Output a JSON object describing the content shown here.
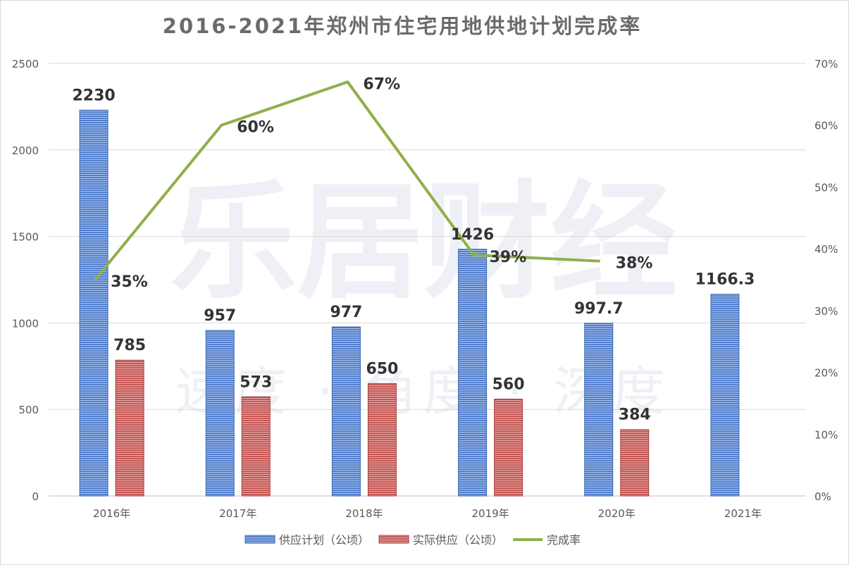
{
  "chart_data": {
    "type": "bar",
    "title": "2016-2021年郑州市住宅用地供地计划完成率",
    "categories": [
      "2016年",
      "2017年",
      "2018年",
      "2019年",
      "2020年",
      "2021年"
    ],
    "series": [
      {
        "name": "供应计划（公顷）",
        "kind": "bar",
        "axis": "left",
        "color": "#5b86d6",
        "values": [
          2230,
          957,
          977,
          1426,
          997.7,
          1166.3
        ],
        "labels": [
          "2230",
          "957",
          "977",
          "1426",
          "997.7",
          "1166.3"
        ]
      },
      {
        "name": "实际供应（公顷）",
        "kind": "bar",
        "axis": "left",
        "color": "#c9504f",
        "values": [
          785,
          573,
          650,
          560,
          384,
          null
        ],
        "labels": [
          "785",
          "573",
          "650",
          "560",
          "384",
          ""
        ]
      },
      {
        "name": "完成率",
        "kind": "line",
        "axis": "right",
        "color": "#8fb04a",
        "values": [
          35,
          60,
          67,
          39,
          38,
          null
        ],
        "labels": [
          "35%",
          "60%",
          "67%",
          "39%",
          "38%",
          ""
        ]
      }
    ],
    "y_left": {
      "min": 0,
      "max": 2500,
      "ticks": [
        "0",
        "500",
        "1000",
        "1500",
        "2000",
        "2500"
      ]
    },
    "y_right": {
      "min": 0,
      "max": 70,
      "ticks": [
        "0%",
        "10%",
        "20%",
        "30%",
        "40%",
        "50%",
        "60%",
        "70%"
      ]
    },
    "grid": true,
    "legend": "bottom"
  },
  "watermark": {
    "brand": "乐居财经",
    "slogan": "速度 · 角度 · 深度"
  }
}
